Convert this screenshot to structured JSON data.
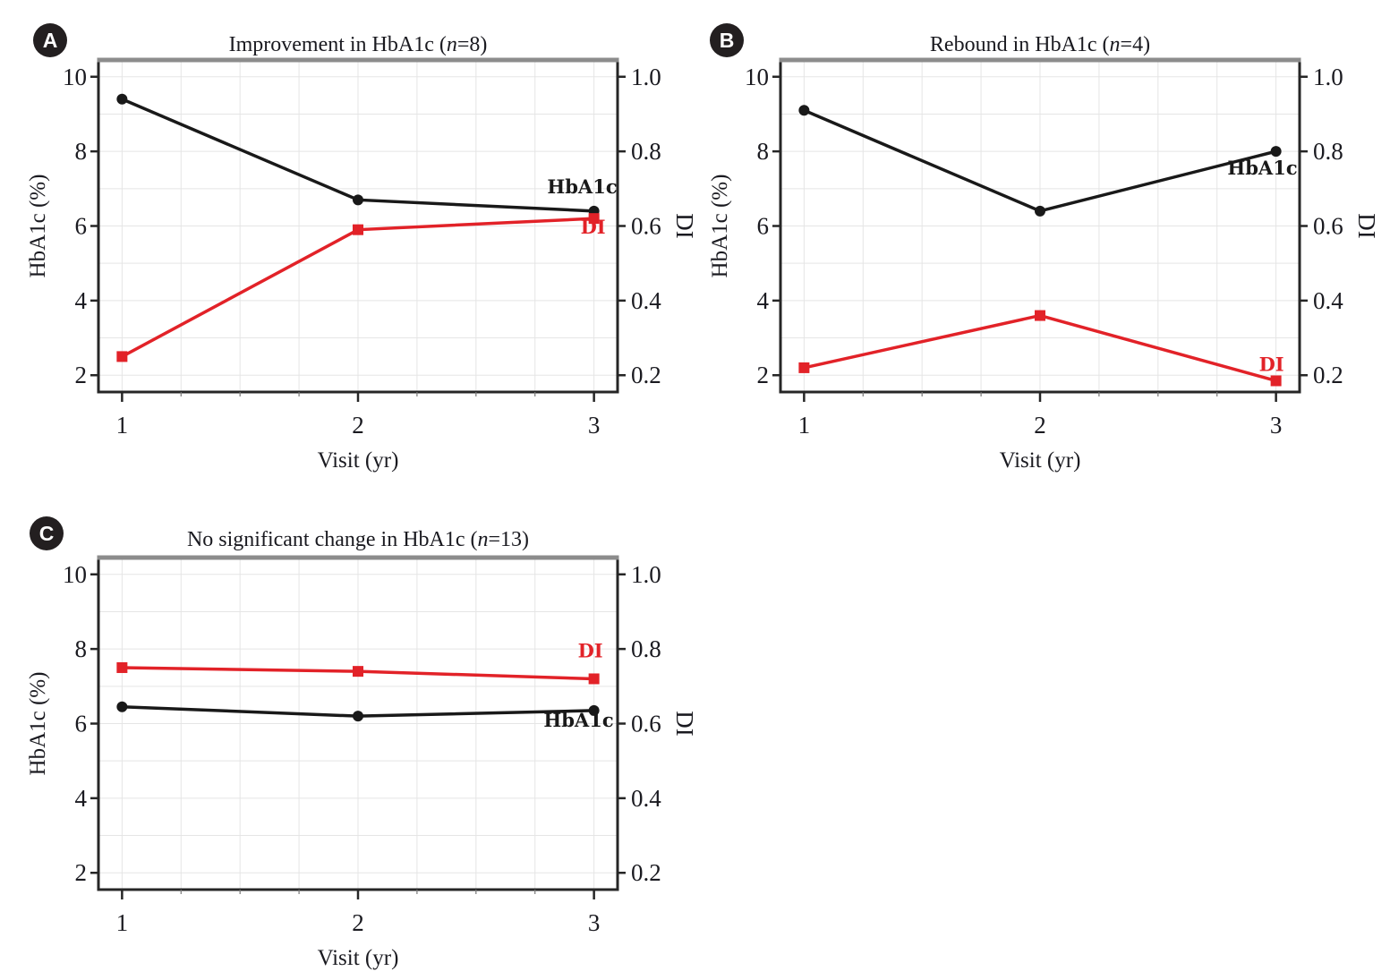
{
  "figure": {
    "background": "#ffffff"
  },
  "colors": {
    "hba1c_series": "#191919",
    "di_series": "#e22228",
    "grid": "#e5e5e5",
    "axis": "#262626",
    "top_border": "#8c8c8c",
    "text": "#1a1a20",
    "badge_bg": "#231f20",
    "badge_text": "#ffffff"
  },
  "chart_data": [
    {
      "badge": "A",
      "type": "line",
      "title": "Improvement in HbA1c",
      "n_equals": "8",
      "x": [
        1,
        2,
        3
      ],
      "x_tick_labels": [
        "1",
        "2",
        "3"
      ],
      "xlabel": "Visit (yr)",
      "xlim": [
        0.9,
        3.1
      ],
      "grid": {
        "x_step": 0.25,
        "y_step": 1,
        "on": true
      },
      "left_axis": {
        "label": "HbA1c (%)",
        "ticks": [
          10,
          8,
          6,
          4,
          2
        ],
        "lim": [
          1.55,
          10.45
        ]
      },
      "right_axis": {
        "label": "DI",
        "ticks": [
          1.0,
          0.8,
          0.6,
          0.4,
          0.2
        ],
        "tick_labels": [
          "1.0",
          "0.8",
          "0.6",
          "0.4",
          "0.2"
        ],
        "lim": [
          0.155,
          1.045
        ]
      },
      "series": [
        {
          "name": "HbA1c",
          "axis": "left",
          "marker": "circle",
          "values": [
            9.4,
            6.7,
            6.4
          ]
        },
        {
          "name": "DI",
          "axis": "right",
          "marker": "square",
          "values": [
            0.25,
            0.59,
            0.62
          ]
        }
      ]
    },
    {
      "badge": "B",
      "type": "line",
      "title": "Rebound in HbA1c",
      "n_equals": "4",
      "x": [
        1,
        2,
        3
      ],
      "x_tick_labels": [
        "1",
        "2",
        "3"
      ],
      "xlabel": "Visit (yr)",
      "xlim": [
        0.9,
        3.1
      ],
      "grid": {
        "x_step": 0.25,
        "y_step": 1,
        "on": true
      },
      "left_axis": {
        "label": "HbA1c (%)",
        "ticks": [
          10,
          8,
          6,
          4,
          2
        ],
        "lim": [
          1.55,
          10.45
        ]
      },
      "right_axis": {
        "label": "DI",
        "ticks": [
          1.0,
          0.8,
          0.6,
          0.4,
          0.2
        ],
        "tick_labels": [
          "1.0",
          "0.8",
          "0.6",
          "0.4",
          "0.2"
        ],
        "lim": [
          0.155,
          1.045
        ]
      },
      "series": [
        {
          "name": "HbA1c",
          "axis": "left",
          "marker": "circle",
          "values": [
            9.1,
            6.4,
            8.0
          ]
        },
        {
          "name": "DI",
          "axis": "right",
          "marker": "square",
          "values": [
            0.22,
            0.36,
            0.185
          ]
        }
      ]
    },
    {
      "badge": "C",
      "type": "line",
      "title": "No significant change in HbA1c",
      "n_equals": "13",
      "x": [
        1,
        2,
        3
      ],
      "x_tick_labels": [
        "1",
        "2",
        "3"
      ],
      "xlabel": "Visit (yr)",
      "xlim": [
        0.9,
        3.1
      ],
      "grid": {
        "x_step": 0.25,
        "y_step": 1,
        "on": true
      },
      "left_axis": {
        "label": "HbA1c (%)",
        "ticks": [
          10,
          8,
          6,
          4,
          2
        ],
        "lim": [
          1.55,
          10.45
        ]
      },
      "right_axis": {
        "label": "DI",
        "ticks": [
          1.0,
          0.8,
          0.6,
          0.4,
          0.2
        ],
        "tick_labels": [
          "1.0",
          "0.8",
          "0.6",
          "0.4",
          "0.2"
        ],
        "lim": [
          0.155,
          1.045
        ]
      },
      "series": [
        {
          "name": "HbA1c",
          "axis": "left",
          "marker": "circle",
          "values": [
            6.45,
            6.2,
            6.35
          ]
        },
        {
          "name": "DI",
          "axis": "right",
          "marker": "square",
          "values": [
            0.75,
            0.74,
            0.72
          ]
        }
      ]
    }
  ]
}
